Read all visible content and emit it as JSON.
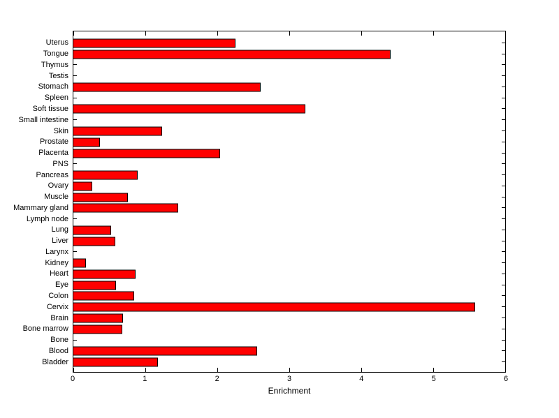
{
  "figure": {
    "background": "#FFFFFF",
    "axis_color": "#000000",
    "text_color": "#000000"
  },
  "chart_data": {
    "type": "bar",
    "orientation": "horizontal",
    "title": "",
    "xlabel": "Enrichment",
    "ylabel": "",
    "xlim": [
      0,
      6
    ],
    "xticks": [
      0,
      1,
      2,
      3,
      4,
      5,
      6
    ],
    "grid": false,
    "legend": false,
    "bar_color": "#FF0000",
    "bar_border_color": "#000000",
    "categories": [
      "Uterus",
      "Tongue",
      "Thymus",
      "Testis",
      "Stomach",
      "Spleen",
      "Soft tissue",
      "Small intestine",
      "Skin",
      "Prostate",
      "Placenta",
      "PNS",
      "Pancreas",
      "Ovary",
      "Muscle",
      "Mammary gland",
      "Lymph node",
      "Lung",
      "Liver",
      "Larynx",
      "Kidney",
      "Heart",
      "Eye",
      "Colon",
      "Cervix",
      "Brain",
      "Bone marrow",
      "Bone",
      "Blood",
      "Bladder"
    ],
    "values": [
      2.25,
      4.4,
      0,
      0,
      2.6,
      0,
      3.22,
      0,
      1.24,
      0.38,
      2.04,
      0,
      0.9,
      0.27,
      0.76,
      1.46,
      0,
      0.53,
      0.59,
      0,
      0.18,
      0.87,
      0.6,
      0.85,
      5.57,
      0.7,
      0.69,
      0,
      2.55,
      1.18
    ]
  }
}
